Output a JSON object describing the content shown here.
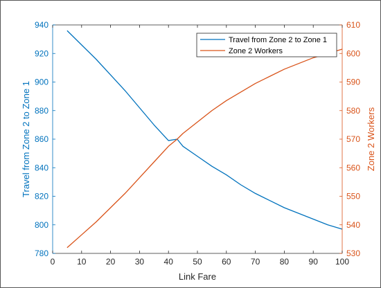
{
  "chart_data": {
    "type": "line",
    "title": "",
    "xlabel": "Link Fare",
    "ylabel_left": "Travel from Zone 2 to Zone 1",
    "ylabel_right": "Zone 2 Workers",
    "xlim": [
      0,
      100
    ],
    "ylim_left": [
      780,
      940
    ],
    "ylim_right": [
      530,
      610
    ],
    "x_ticks": [
      0,
      10,
      20,
      30,
      40,
      50,
      60,
      70,
      80,
      90,
      100
    ],
    "y_ticks_left": [
      780,
      800,
      820,
      840,
      860,
      880,
      900,
      920,
      940
    ],
    "y_ticks_right": [
      530,
      540,
      550,
      560,
      570,
      580,
      590,
      600,
      610
    ],
    "grid": false,
    "legend_position": "top-right",
    "colors": {
      "left": "#0072BD",
      "right": "#D95319"
    },
    "series": [
      {
        "name": "Travel from Zone 2 to Zone 1",
        "axis": "left",
        "x": [
          5,
          10,
          15,
          20,
          25,
          30,
          35,
          40,
          43,
          45,
          50,
          55,
          60,
          65,
          70,
          75,
          80,
          85,
          90,
          95,
          100
        ],
        "y": [
          936,
          926,
          916,
          905,
          894,
          882,
          870,
          859,
          860,
          855,
          848,
          841,
          835,
          828,
          822,
          817,
          812,
          808,
          804,
          800,
          797
        ]
      },
      {
        "name": "Zone 2 Workers",
        "axis": "right",
        "x": [
          5,
          10,
          15,
          20,
          25,
          30,
          35,
          40,
          43,
          45,
          50,
          55,
          60,
          65,
          70,
          75,
          80,
          85,
          90,
          95,
          100
        ],
        "y": [
          532,
          536.5,
          541,
          546,
          551,
          556.5,
          562,
          567.5,
          570,
          572,
          576,
          580,
          583.5,
          586.5,
          589.5,
          592,
          594.5,
          596.5,
          598.5,
          600,
          601.5
        ]
      }
    ]
  }
}
